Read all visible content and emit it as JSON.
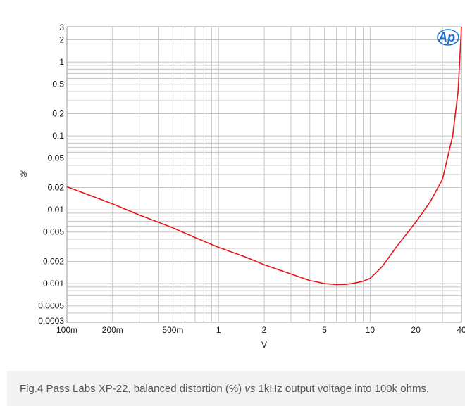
{
  "chart_data": {
    "type": "line",
    "title": "",
    "xlabel": "V",
    "ylabel": "%",
    "x_scale": "log",
    "y_scale": "log",
    "xlim": [
      0.1,
      40
    ],
    "ylim": [
      0.0003,
      3
    ],
    "grid": true,
    "x_ticks": [
      {
        "value": 0.1,
        "label": "100m"
      },
      {
        "value": 0.2,
        "label": "200m"
      },
      {
        "value": 0.5,
        "label": "500m"
      },
      {
        "value": 1,
        "label": "1"
      },
      {
        "value": 2,
        "label": "2"
      },
      {
        "value": 5,
        "label": "5"
      },
      {
        "value": 10,
        "label": "10"
      },
      {
        "value": 20,
        "label": "20"
      },
      {
        "value": 40,
        "label": "40"
      }
    ],
    "y_ticks": [
      {
        "value": 3,
        "label": "3"
      },
      {
        "value": 2,
        "label": "2"
      },
      {
        "value": 1,
        "label": "1"
      },
      {
        "value": 0.5,
        "label": "0.5"
      },
      {
        "value": 0.2,
        "label": "0.2"
      },
      {
        "value": 0.1,
        "label": "0.1"
      },
      {
        "value": 0.05,
        "label": "0.05"
      },
      {
        "value": 0.02,
        "label": "0.02"
      },
      {
        "value": 0.01,
        "label": "0.01"
      },
      {
        "value": 0.005,
        "label": "0.005"
      },
      {
        "value": 0.002,
        "label": "0.002"
      },
      {
        "value": 0.001,
        "label": "0.001"
      },
      {
        "value": 0.0005,
        "label": "0.0005"
      },
      {
        "value": 0.0003,
        "label": "0.0003"
      }
    ],
    "series": [
      {
        "color": "#e8141c",
        "x": [
          0.1,
          0.15,
          0.2,
          0.3,
          0.5,
          0.7,
          1,
          1.5,
          2,
          3,
          4,
          4.5,
          5,
          6,
          7,
          8,
          9,
          10,
          12,
          15,
          20,
          25,
          30,
          35,
          38,
          40
        ],
        "y": [
          0.0205,
          0.015,
          0.012,
          0.0085,
          0.0057,
          0.0042,
          0.0031,
          0.0023,
          0.0018,
          0.00135,
          0.0011,
          0.00105,
          0.001,
          0.00097,
          0.00098,
          0.00102,
          0.00108,
          0.00118,
          0.0017,
          0.0032,
          0.0068,
          0.013,
          0.026,
          0.1,
          0.4,
          3.0
        ]
      }
    ]
  },
  "logo": {
    "text": "Ap",
    "color": "#1a6fd1"
  },
  "caption": {
    "before": "Fig.4 Pass Labs XP-22, balanced distortion (%) ",
    "italic": "vs",
    "after": " 1kHz output voltage into 100k ohms."
  }
}
